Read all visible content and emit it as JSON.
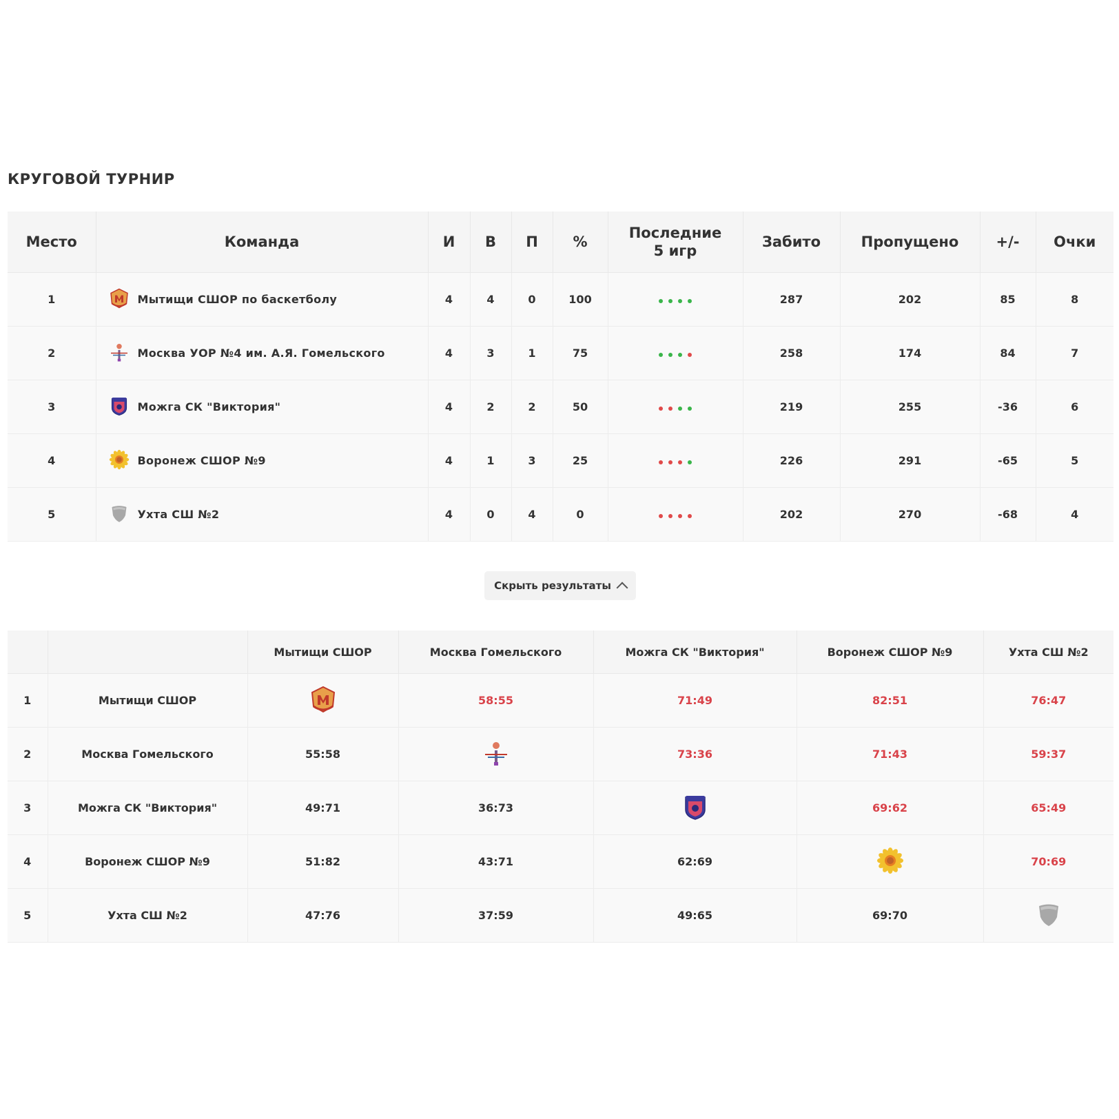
{
  "title": "КРУГОВОЙ ТУРНИР",
  "standings": {
    "headers": {
      "place": "Место",
      "team": "Команда",
      "games": "И",
      "wins": "В",
      "losses": "П",
      "pct": "%",
      "last5_line1": "Последние",
      "last5_line2": "5 игр",
      "scored": "Забито",
      "conceded": "Пропущено",
      "diff": "+/-",
      "points": "Очки"
    },
    "rows": [
      {
        "place": "1",
        "team": "Мытищи СШОР по баскетболу",
        "logo": "mytishchi-logo",
        "games": "4",
        "wins": "4",
        "losses": "0",
        "pct": "100",
        "last5": [
          "w",
          "w",
          "w",
          "w"
        ],
        "scored": "287",
        "conceded": "202",
        "diff": "85",
        "points": "8"
      },
      {
        "place": "2",
        "team": "Москва УОР №4 им. А.Я. Гомельского",
        "logo": "moscow-logo",
        "games": "4",
        "wins": "3",
        "losses": "1",
        "pct": "75",
        "last5": [
          "w",
          "w",
          "w",
          "l"
        ],
        "scored": "258",
        "conceded": "174",
        "diff": "84",
        "points": "7"
      },
      {
        "place": "3",
        "team": "Можга СК \"Виктория\"",
        "logo": "mozhga-logo",
        "games": "4",
        "wins": "2",
        "losses": "2",
        "pct": "50",
        "last5": [
          "l",
          "l",
          "w",
          "w"
        ],
        "scored": "219",
        "conceded": "255",
        "diff": "-36",
        "points": "6"
      },
      {
        "place": "4",
        "team": "Воронеж СШОР №9",
        "logo": "voronezh-logo",
        "games": "4",
        "wins": "1",
        "losses": "3",
        "pct": "25",
        "last5": [
          "l",
          "l",
          "l",
          "w"
        ],
        "scored": "226",
        "conceded": "291",
        "diff": "-65",
        "points": "5"
      },
      {
        "place": "5",
        "team": "Ухта СШ №2",
        "logo": "ukhta-logo",
        "games": "4",
        "wins": "0",
        "losses": "4",
        "pct": "0",
        "last5": [
          "l",
          "l",
          "l",
          "l"
        ],
        "scored": "202",
        "conceded": "270",
        "diff": "-68",
        "points": "4"
      }
    ]
  },
  "toggle": {
    "label": "Скрыть результаты",
    "icon": "chevron-up-icon"
  },
  "results": {
    "columns": [
      "Мытищи СШОР",
      "Москва Гомельского",
      "Можга СК \"Виктория\"",
      "Воронеж СШОР №9",
      "Ухта СШ №2"
    ],
    "rows": [
      {
        "place": "1",
        "team": "Мытищи СШОР",
        "cells": [
          "",
          "58:55",
          "71:49",
          "82:51",
          "76:47"
        ]
      },
      {
        "place": "2",
        "team": "Москва Гомельского",
        "cells": [
          "55:58",
          "",
          "73:36",
          "71:43",
          "59:37"
        ]
      },
      {
        "place": "3",
        "team": "Можга СК \"Виктория\"",
        "cells": [
          "49:71",
          "36:73",
          "",
          "69:62",
          "65:49"
        ]
      },
      {
        "place": "4",
        "team": "Воронеж СШОР №9",
        "cells": [
          "51:82",
          "43:71",
          "62:69",
          "",
          "70:69"
        ]
      },
      {
        "place": "5",
        "team": "Ухта СШ №2",
        "cells": [
          "47:76",
          "37:59",
          "49:65",
          "69:70",
          ""
        ]
      }
    ]
  },
  "colors": {
    "win_dot": "#3ab54a",
    "loss_dot": "#e04a4a",
    "win_score": "#d9434a"
  }
}
